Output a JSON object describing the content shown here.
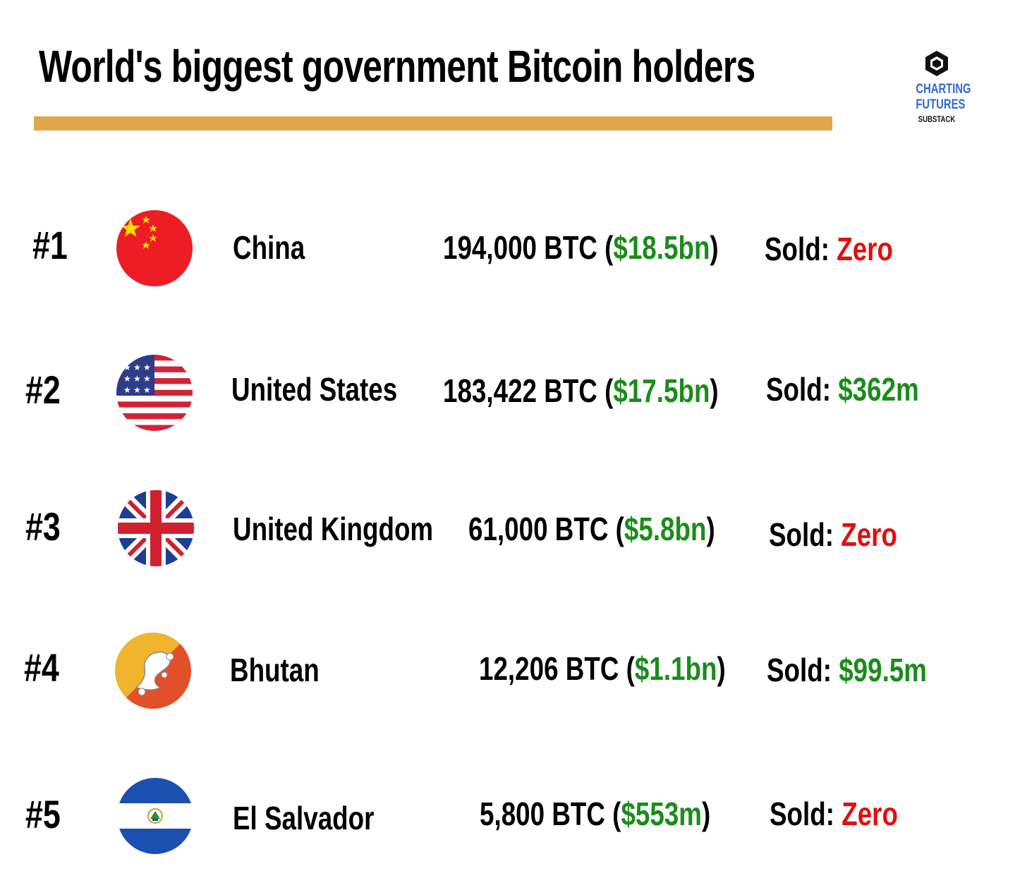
{
  "title": "World's biggest government Bitcoin holders",
  "logo": {
    "line1": "CHARTING",
    "line2": "FUTURES",
    "line3": "SUBSTACK",
    "icon": "cube-hexagon-icon"
  },
  "colors": {
    "accent_bar": "#e2a64a",
    "positive": "#1a8c1a",
    "zero": "#e01010",
    "logo_blue": "#2f6ad0"
  },
  "rows": [
    {
      "rank": "#1",
      "country": "China",
      "flag": "china-flag-icon",
      "btc": "194,000 BTC",
      "open": " (",
      "value": "$18.5bn",
      "close": ")",
      "sold_label": "Sold: ",
      "sold_value": "Zero"
    },
    {
      "rank": "#2",
      "country": "United States",
      "flag": "usa-flag-icon",
      "btc": "183,422 BTC",
      "open": " (",
      "value": "$17.5bn",
      "close": ")",
      "sold_label": "Sold: ",
      "sold_value": "$362m"
    },
    {
      "rank": "#3",
      "country": "United Kingdom",
      "flag": "uk-flag-icon",
      "btc": "61,000 BTC",
      "open": " (",
      "value": "$5.8bn",
      "close": ")",
      "sold_label": "Sold: ",
      "sold_value": "Zero"
    },
    {
      "rank": "#4",
      "country": "Bhutan",
      "flag": "bhutan-flag-icon",
      "btc": "12,206 BTC",
      "open": " (",
      "value": "$1.1bn",
      "close": ")",
      "sold_label": "Sold: ",
      "sold_value": "$99.5m"
    },
    {
      "rank": "#5",
      "country": "El Salvador",
      "flag": "el-salvador-flag-icon",
      "btc": "5,800 BTC",
      "open": " (",
      "value": "$553m",
      "close": ")",
      "sold_label": "Sold: ",
      "sold_value": "Zero"
    }
  ]
}
